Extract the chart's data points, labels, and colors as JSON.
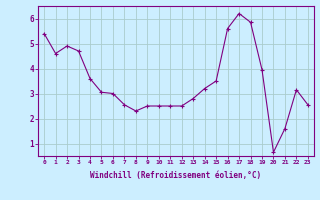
{
  "x": [
    0,
    1,
    2,
    3,
    4,
    5,
    6,
    7,
    8,
    9,
    10,
    11,
    12,
    13,
    14,
    15,
    16,
    17,
    18,
    19,
    20,
    21,
    22,
    23
  ],
  "y": [
    5.4,
    4.6,
    4.9,
    4.7,
    3.6,
    3.05,
    3.0,
    2.55,
    2.3,
    2.5,
    2.5,
    2.5,
    2.5,
    2.8,
    3.2,
    3.5,
    5.6,
    6.2,
    5.85,
    3.95,
    0.65,
    1.6,
    3.15,
    2.55
  ],
  "line_color": "#800080",
  "marker": "+",
  "bg_color": "#cceeff",
  "grid_color": "#aacccc",
  "xlabel": "Windchill (Refroidissement éolien,°C)",
  "xlabel_color": "#800080",
  "tick_color": "#800080",
  "ylim": [
    0.5,
    6.5
  ],
  "xlim": [
    -0.5,
    23.5
  ],
  "yticks": [
    1,
    2,
    3,
    4,
    5,
    6
  ],
  "xticks": [
    0,
    1,
    2,
    3,
    4,
    5,
    6,
    7,
    8,
    9,
    10,
    11,
    12,
    13,
    14,
    15,
    16,
    17,
    18,
    19,
    20,
    21,
    22,
    23
  ],
  "xtick_labels": [
    "0",
    "1",
    "2",
    "3",
    "4",
    "5",
    "6",
    "7",
    "8",
    "9",
    "10",
    "11",
    "12",
    "13",
    "14",
    "15",
    "16",
    "17",
    "18",
    "19",
    "20",
    "21",
    "22",
    "23"
  ],
  "spine_color": "#800080"
}
